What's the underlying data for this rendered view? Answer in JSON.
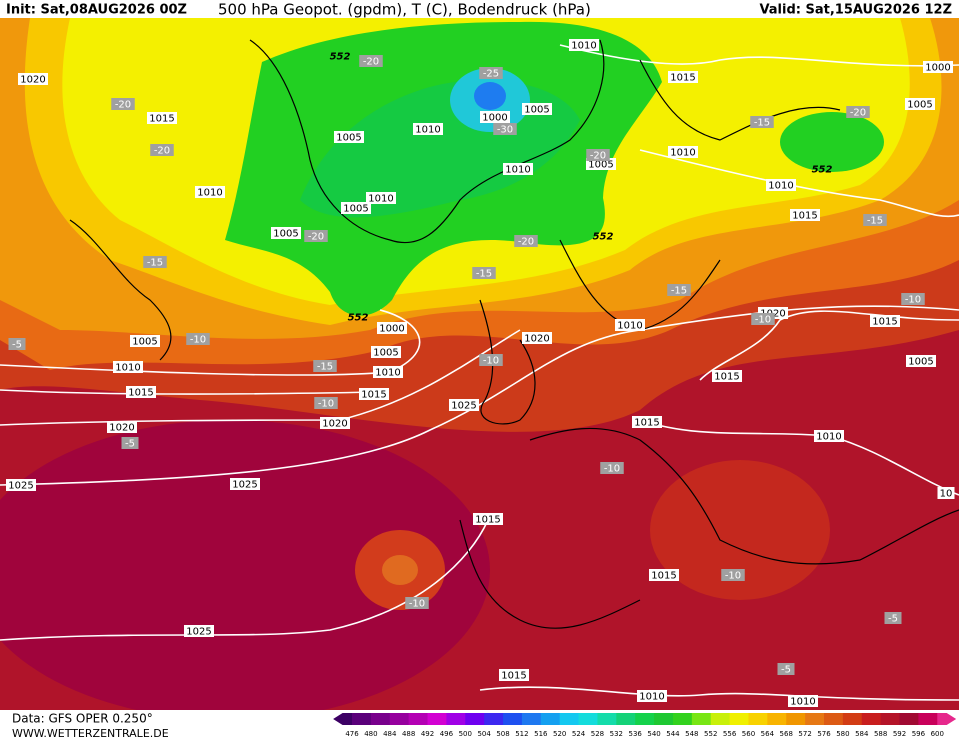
{
  "header": {
    "init": "Init: Sat,08AUG2026 00Z",
    "title": "500 hPa Geopot. (gpdm), T (C), Bodendruck (hPa)",
    "valid": "Valid: Sat,15AUG2026 12Z"
  },
  "footer": {
    "source": "Data: GFS OPER 0.250°",
    "site": "WWW.WETTERZENTRALE.DE"
  },
  "scale": {
    "labels": [
      476,
      480,
      484,
      488,
      492,
      496,
      500,
      504,
      508,
      512,
      516,
      520,
      524,
      528,
      532,
      536,
      540,
      544,
      548,
      552,
      556,
      560,
      564,
      568,
      572,
      576,
      580,
      584,
      588,
      592,
      596,
      600
    ]
  },
  "map": {
    "isobar_labels": [
      "1010",
      "1015",
      "1000",
      "1005",
      "1020",
      "1015",
      "1005",
      "1000",
      "1010",
      "1005",
      "1010",
      "1005",
      "1010",
      "1005",
      "1010",
      "1005",
      "1010",
      "1010",
      "1015",
      "1000",
      "1005",
      "1010",
      "1015",
      "1020",
      "1010",
      "1020",
      "1015",
      "1005",
      "1010",
      "1015",
      "1005",
      "1015",
      "1020",
      "1020",
      "1025",
      "1015",
      "1010",
      "1025",
      "1025",
      "1015",
      "1015",
      "1025",
      "1015",
      "1010",
      "1010",
      "10"
    ],
    "temperature_labels": [
      "-20",
      "-25",
      "-20",
      "-30",
      "-20",
      "-15",
      "-20",
      "-20",
      "-20",
      "-20",
      "-15",
      "-15",
      "-15",
      "-15",
      "-10",
      "-10",
      "-10",
      "-5",
      "-15",
      "-10",
      "-10",
      "-5",
      "-10",
      "-10",
      "-10",
      "-5",
      "-5"
    ],
    "geopotential_labels": [
      "552",
      "552",
      "552",
      "552"
    ]
  }
}
